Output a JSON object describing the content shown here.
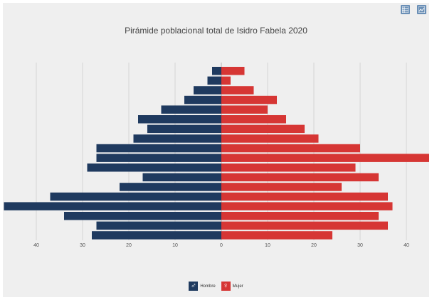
{
  "chart_data": {
    "type": "bar",
    "orientation": "horizontal-pyramid",
    "title": "Pirámide poblacional total de Isidro Fabela 2020",
    "xlim": [
      -47,
      47
    ],
    "xticks": [
      -40,
      -30,
      -20,
      -10,
      0,
      10,
      20,
      30,
      40
    ],
    "xtick_labels": [
      "40",
      "30",
      "20",
      "10",
      "0",
      "10",
      "20",
      "30",
      "40"
    ],
    "grid": true,
    "legend_position": "bottom-center",
    "series": [
      {
        "name": "Hombre",
        "color": "#1f3a5f",
        "values": [
          28,
          27,
          34,
          47,
          37,
          22,
          17,
          29,
          27,
          27,
          19,
          16,
          18,
          13,
          8,
          6,
          3,
          2
        ]
      },
      {
        "name": "Mujer",
        "color": "#d63634",
        "values": [
          24,
          36,
          34,
          37,
          36,
          26,
          34,
          29,
          46,
          30,
          21,
          18,
          14,
          10,
          12,
          7,
          2,
          5
        ]
      }
    ]
  },
  "legend": {
    "items": [
      {
        "label": "Hombre",
        "symbol": "♂",
        "color": "#1f3a5f"
      },
      {
        "label": "Mujer",
        "symbol": "♀",
        "color": "#d63634"
      }
    ]
  },
  "toolbar": {
    "table_icon": "table-icon",
    "chart_icon": "chart-icon"
  }
}
